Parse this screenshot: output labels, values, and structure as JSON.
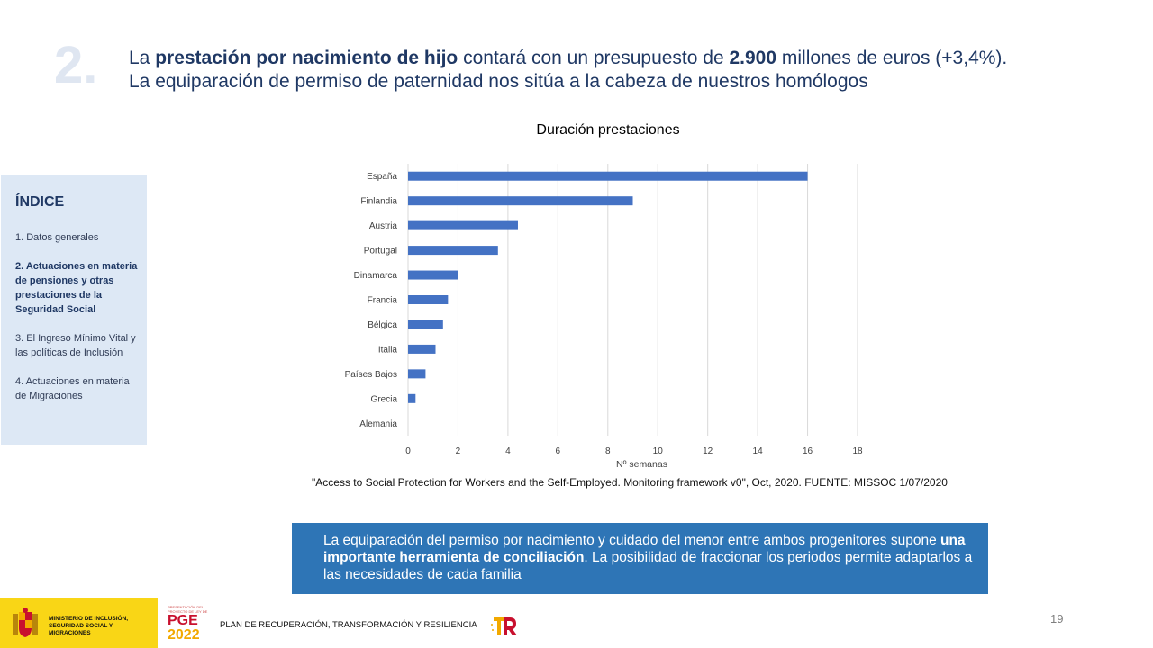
{
  "slide": {
    "number": "2.",
    "headline_parts": [
      "La ",
      "prestación por nacimiento de hijo",
      " contará con un presupuesto de ",
      "2.900",
      " millones de euros (+3,4%)."
    ],
    "headline_line2": "La equiparación de permiso de paternidad nos sitúa a la cabeza de nuestros homólogos"
  },
  "sidebar": {
    "title": "ÍNDICE",
    "items": [
      {
        "label": "1. Datos generales"
      },
      {
        "label": "2. Actuaciones en materia de pensiones y otras prestaciones de la Seguridad Social"
      },
      {
        "label": "3. El Ingreso Mínimo Vital y las políticas de Inclusión"
      },
      {
        "label": "4. Actuaciones en materia de Migraciones"
      }
    ]
  },
  "chart_data": {
    "type": "bar",
    "orientation": "horizontal",
    "title": "Duración prestaciones",
    "xlabel": "Nº semanas",
    "ylabel": "",
    "categories": [
      "España",
      "Finlandia",
      "Austria",
      "Portugal",
      "Dinamarca",
      "Francia",
      "Bélgica",
      "Italia",
      "Países Bajos",
      "Grecia",
      "Alemania"
    ],
    "values": [
      16,
      9,
      4.4,
      3.6,
      2,
      1.6,
      1.4,
      1.1,
      0.7,
      0.3,
      0
    ],
    "xlim": [
      0,
      18
    ],
    "xticks": [
      0,
      2,
      4,
      6,
      8,
      10,
      12,
      14,
      16,
      18
    ],
    "grid": "vertical",
    "bar_color": "#4472c4",
    "legend": "none"
  },
  "source": "\"Access to Social Protection for Workers and the Self-Employed. Monitoring framework v0\", Oct, 2020.  FUENTE: MISSOC 1/07/2020",
  "callout": {
    "part1": "La equiparación del permiso por nacimiento y cuidado del menor entre ambos progenitores supone ",
    "bold": "una importante herramienta de conciliación",
    "part2": ". La posibilidad de fraccionar los periodos permite adaptarlos a las necesidades de cada familia"
  },
  "footer": {
    "ministry": "MINISTERIO DE INCLUSIÓN, SEGURIDAD SOCIAL Y MIGRACIONES",
    "pge_small": "PRESENTACIÓN DEL PROYECTO DE LEY DE",
    "pge": "PGE",
    "pge_year": "2022",
    "plan": "PLAN DE RECUPERACIÓN, TRANSFORMACIÓN Y RESILIENCIA",
    "page_number": "19"
  },
  "colors": {
    "accent": "#2e75b6",
    "sidebar_bg": "#dde8f5",
    "footer_yellow": "#f9d616"
  }
}
